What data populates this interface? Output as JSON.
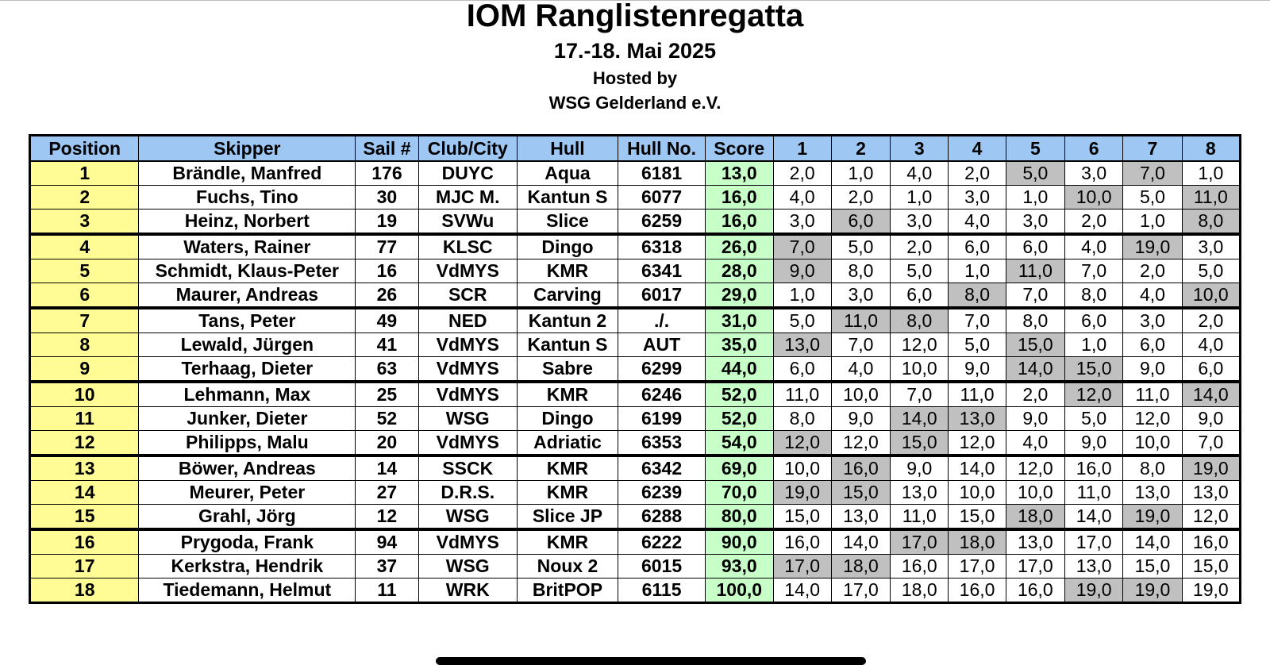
{
  "title": "IOM Ranglistenregatta",
  "date": "17.-18. Mai 2025",
  "hosted_by": "Hosted by",
  "host": "WSG Gelderland e.V.",
  "colors": {
    "header_bg": "#9ec7f4",
    "position_bg": "#fffc95",
    "score_bg": "#c8ffc8",
    "dropped_bg": "#c0c0c0"
  },
  "table": {
    "headers": [
      "Position",
      "Skipper",
      "Sail #",
      "Club/City",
      "Hull",
      "Hull No.",
      "Score",
      "1",
      "2",
      "3",
      "4",
      "5",
      "6",
      "7",
      "8"
    ],
    "rows": [
      {
        "position": "1",
        "skipper": "Brändle, Manfred",
        "sail": "176",
        "club": "DUYC",
        "hull": "Aqua",
        "hull_no": "6181",
        "score": "13,0",
        "races": [
          "2,0",
          "1,0",
          "4,0",
          "2,0",
          "5,0",
          "3,0",
          "7,0",
          "1,0"
        ],
        "dropped": [
          4,
          6
        ]
      },
      {
        "position": "2",
        "skipper": "Fuchs, Tino",
        "sail": "30",
        "club": "MJC M.",
        "hull": "Kantun S",
        "hull_no": "6077",
        "score": "16,0",
        "races": [
          "4,0",
          "2,0",
          "1,0",
          "3,0",
          "1,0",
          "10,0",
          "5,0",
          "11,0"
        ],
        "dropped": [
          5,
          7
        ]
      },
      {
        "position": "3",
        "skipper": "Heinz, Norbert",
        "sail": "19",
        "club": "SVWu",
        "hull": "Slice",
        "hull_no": "6259",
        "score": "16,0",
        "races": [
          "3,0",
          "6,0",
          "3,0",
          "4,0",
          "3,0",
          "2,0",
          "1,0",
          "8,0"
        ],
        "dropped": [
          1,
          7
        ]
      },
      {
        "position": "4",
        "skipper": "Waters, Rainer",
        "sail": "77",
        "club": "KLSC",
        "hull": "Dingo",
        "hull_no": "6318",
        "score": "26,0",
        "races": [
          "7,0",
          "5,0",
          "2,0",
          "6,0",
          "6,0",
          "4,0",
          "19,0",
          "3,0"
        ],
        "dropped": [
          0,
          6
        ]
      },
      {
        "position": "5",
        "skipper": "Schmidt, Klaus-Peter",
        "sail": "16",
        "club": "VdMYS",
        "hull": "KMR",
        "hull_no": "6341",
        "score": "28,0",
        "races": [
          "9,0",
          "8,0",
          "5,0",
          "1,0",
          "11,0",
          "7,0",
          "2,0",
          "5,0"
        ],
        "dropped": [
          0,
          4
        ]
      },
      {
        "position": "6",
        "skipper": "Maurer, Andreas",
        "sail": "26",
        "club": "SCR",
        "hull": "Carving",
        "hull_no": "6017",
        "score": "29,0",
        "races": [
          "1,0",
          "3,0",
          "6,0",
          "8,0",
          "7,0",
          "8,0",
          "4,0",
          "10,0"
        ],
        "dropped": [
          3,
          7
        ]
      },
      {
        "position": "7",
        "skipper": "Tans, Peter",
        "sail": "49",
        "club": "NED",
        "hull": "Kantun 2",
        "hull_no": "./.",
        "score": "31,0",
        "races": [
          "5,0",
          "11,0",
          "8,0",
          "7,0",
          "8,0",
          "6,0",
          "3,0",
          "2,0"
        ],
        "dropped": [
          1,
          2
        ]
      },
      {
        "position": "8",
        "skipper": "Lewald, Jürgen",
        "sail": "41",
        "club": "VdMYS",
        "hull": "Kantun S",
        "hull_no": "AUT",
        "score": "35,0",
        "races": [
          "13,0",
          "7,0",
          "12,0",
          "5,0",
          "15,0",
          "1,0",
          "6,0",
          "4,0"
        ],
        "dropped": [
          0,
          4
        ]
      },
      {
        "position": "9",
        "skipper": "Terhaag, Dieter",
        "sail": "63",
        "club": "VdMYS",
        "hull": "Sabre",
        "hull_no": "6299",
        "score": "44,0",
        "races": [
          "6,0",
          "4,0",
          "10,0",
          "9,0",
          "14,0",
          "15,0",
          "9,0",
          "6,0"
        ],
        "dropped": [
          4,
          5
        ]
      },
      {
        "position": "10",
        "skipper": "Lehmann, Max",
        "sail": "25",
        "club": "VdMYS",
        "hull": "KMR",
        "hull_no": "6246",
        "score": "52,0",
        "races": [
          "11,0",
          "10,0",
          "7,0",
          "11,0",
          "2,0",
          "12,0",
          "11,0",
          "14,0"
        ],
        "dropped": [
          5,
          7
        ]
      },
      {
        "position": "11",
        "skipper": "Junker, Dieter",
        "sail": "52",
        "club": "WSG",
        "hull": "Dingo",
        "hull_no": "6199",
        "score": "52,0",
        "races": [
          "8,0",
          "9,0",
          "14,0",
          "13,0",
          "9,0",
          "5,0",
          "12,0",
          "9,0"
        ],
        "dropped": [
          2,
          3
        ]
      },
      {
        "position": "12",
        "skipper": "Philipps, Malu",
        "sail": "20",
        "club": "VdMYS",
        "hull": "Adriatic",
        "hull_no": "6353",
        "score": "54,0",
        "races": [
          "12,0",
          "12,0",
          "15,0",
          "12,0",
          "4,0",
          "9,0",
          "10,0",
          "7,0"
        ],
        "dropped": [
          0,
          2
        ]
      },
      {
        "position": "13",
        "skipper": "Böwer, Andreas",
        "sail": "14",
        "club": "SSCK",
        "hull": "KMR",
        "hull_no": "6342",
        "score": "69,0",
        "races": [
          "10,0",
          "16,0",
          "9,0",
          "14,0",
          "12,0",
          "16,0",
          "8,0",
          "19,0"
        ],
        "dropped": [
          1,
          7
        ]
      },
      {
        "position": "14",
        "skipper": "Meurer, Peter",
        "sail": "27",
        "club": "D.R.S.",
        "hull": "KMR",
        "hull_no": "6239",
        "score": "70,0",
        "races": [
          "19,0",
          "15,0",
          "13,0",
          "10,0",
          "10,0",
          "11,0",
          "13,0",
          "13,0"
        ],
        "dropped": [
          0,
          1
        ]
      },
      {
        "position": "15",
        "skipper": "Grahl, Jörg",
        "sail": "12",
        "club": "WSG",
        "hull": "Slice JP",
        "hull_no": "6288",
        "score": "80,0",
        "races": [
          "15,0",
          "13,0",
          "11,0",
          "15,0",
          "18,0",
          "14,0",
          "19,0",
          "12,0"
        ],
        "dropped": [
          4,
          6
        ]
      },
      {
        "position": "16",
        "skipper": "Prygoda, Frank",
        "sail": "94",
        "club": "VdMYS",
        "hull": "KMR",
        "hull_no": "6222",
        "score": "90,0",
        "races": [
          "16,0",
          "14,0",
          "17,0",
          "18,0",
          "13,0",
          "17,0",
          "14,0",
          "16,0"
        ],
        "dropped": [
          2,
          3
        ]
      },
      {
        "position": "17",
        "skipper": "Kerkstra, Hendrik",
        "sail": "37",
        "club": "WSG",
        "hull": "Noux 2",
        "hull_no": "6015",
        "score": "93,0",
        "races": [
          "17,0",
          "18,0",
          "16,0",
          "17,0",
          "17,0",
          "13,0",
          "15,0",
          "15,0"
        ],
        "dropped": [
          0,
          1
        ]
      },
      {
        "position": "18",
        "skipper": "Tiedemann, Helmut",
        "sail": "11",
        "club": "WRK",
        "hull": "BritPOP",
        "hull_no": "6115",
        "score": "100,0",
        "races": [
          "14,0",
          "17,0",
          "18,0",
          "16,0",
          "16,0",
          "19,0",
          "19,0",
          "19,0"
        ],
        "dropped": [
          5,
          6
        ]
      }
    ]
  }
}
